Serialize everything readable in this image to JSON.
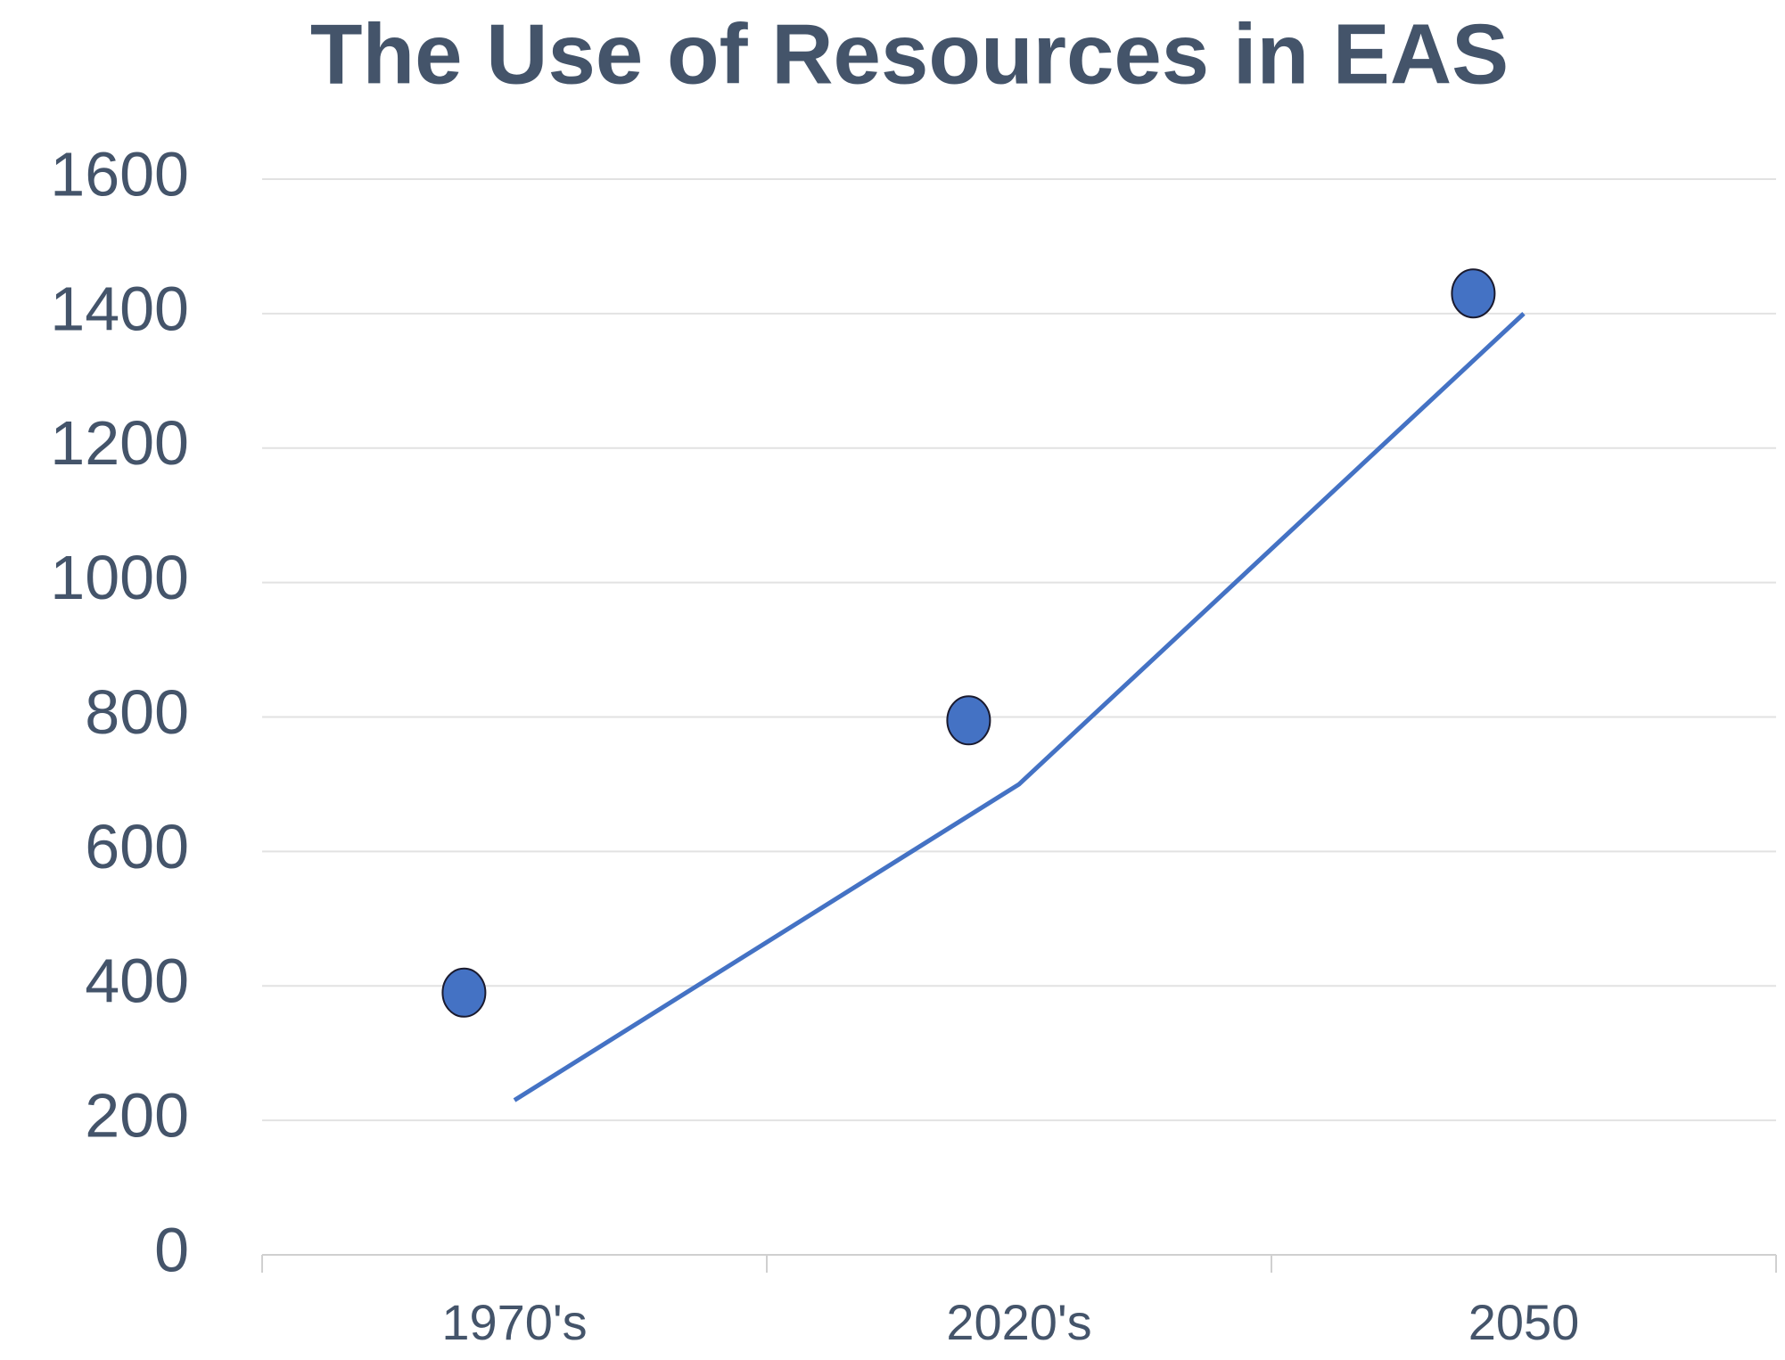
{
  "chart_data": {
    "type": "line",
    "title": "The Use of Resources in EAS",
    "categories": [
      "1970's",
      "2020's",
      "2050"
    ],
    "series": [
      {
        "color": "#4472c4",
        "values": [
          230,
          700,
          1400
        ],
        "line": true,
        "marker": false
      },
      {
        "color": "#4472c4",
        "values": [
          390,
          795,
          1430
        ],
        "line": false,
        "marker": true
      }
    ],
    "ylim": [
      0,
      1600
    ],
    "yticks": [
      0,
      200,
      400,
      600,
      800,
      1000,
      1200,
      1400,
      1600
    ],
    "grid": true
  }
}
